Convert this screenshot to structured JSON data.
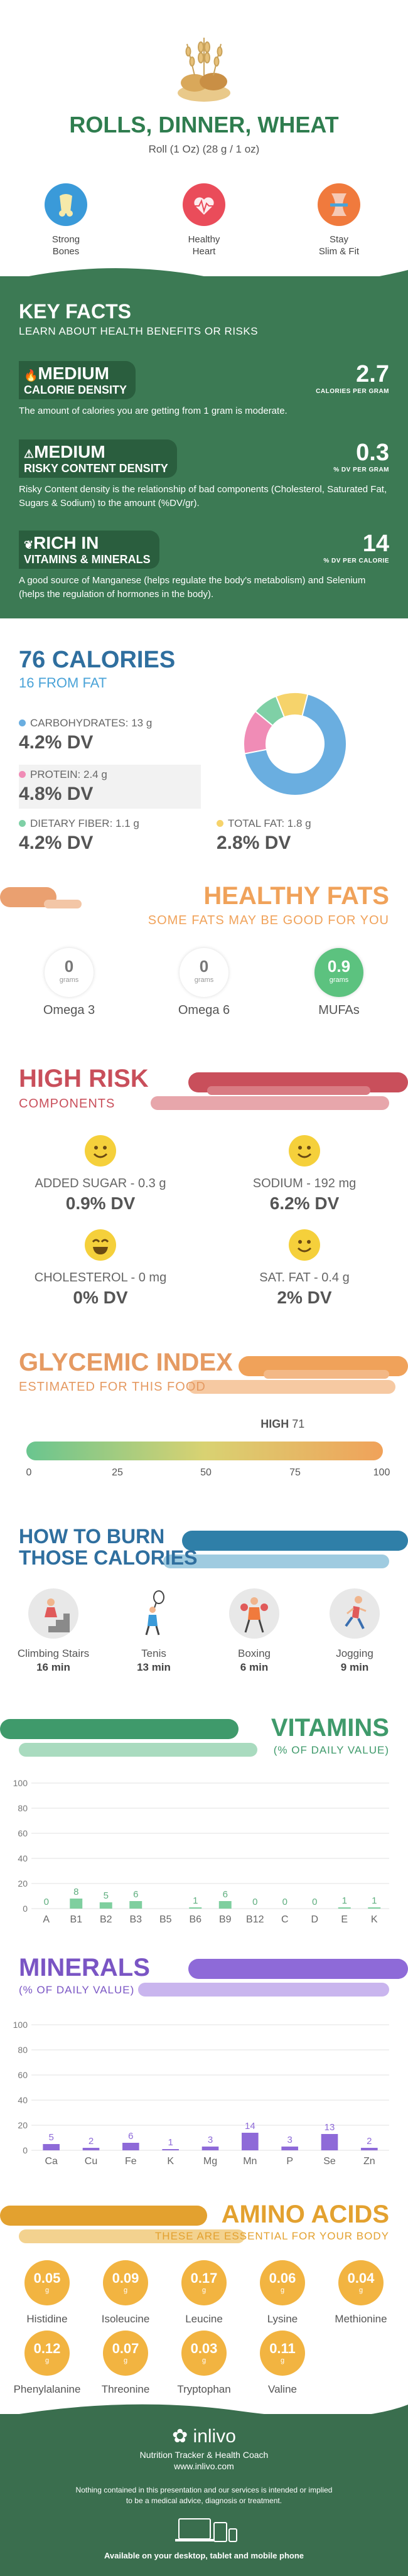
{
  "header": {
    "title": "ROLLS, DINNER, WHEAT",
    "serving": "Roll (1 Oz) (28 g / 1 oz)",
    "benefits": [
      {
        "line1": "Strong",
        "line2": "Bones",
        "icon": "bone-icon",
        "color": "#3a9ad9"
      },
      {
        "line1": "Healthy",
        "line2": "Heart",
        "icon": "heart-icon",
        "color": "#ea4c5a"
      },
      {
        "line1": "Stay",
        "line2": "Slim & Fit",
        "icon": "waist-icon",
        "color": "#f07a3d"
      }
    ]
  },
  "key_facts": {
    "title": "KEY FACTS",
    "subtitle": "LEARN ABOUT HEALTH BENEFITS OR RISKS",
    "items": [
      {
        "level": "MEDIUM",
        "name": "CALORIE DENSITY",
        "value": "2.7",
        "unit": "CALORIES PER GRAM",
        "desc": "The amount of calories you are getting from 1 gram is moderate."
      },
      {
        "level": "MEDIUM",
        "name": "RISKY CONTENT DENSITY",
        "value": "0.3",
        "unit": "% DV PER GRAM",
        "desc": "Risky Content density is the relationship of bad components (Cholesterol, Saturated Fat, Sugars & Sodium) to the amount (%DV/gr)."
      },
      {
        "level": "RICH IN",
        "name": "VITAMINS & MINERALS",
        "value": "14",
        "unit": "% DV PER CALORIE",
        "desc": "A good source of Manganese (helps regulate the body's metabolism) and Selenium (helps the regulation of hormones in the body)."
      }
    ]
  },
  "calories": {
    "title": "76 CALORIES",
    "from_fat": "16 FROM FAT",
    "nutrients": [
      {
        "label": "CARBOHYDRATES: 13 g",
        "dv": "4.2% DV",
        "color": "#6aaee0"
      },
      {
        "label": "PROTEIN: 2.4 g",
        "dv": "4.8% DV",
        "color": "#f08cb6"
      },
      {
        "label": "DIETARY FIBER: 1.1 g",
        "dv": "4.2% DV",
        "color": "#7fd0a6"
      },
      {
        "label": "TOTAL FAT: 1.8 g",
        "dv": "2.8% DV",
        "color": "#f6d36b"
      }
    ],
    "donut": [
      {
        "value": 68,
        "color": "#6aaee0"
      },
      {
        "value": 14,
        "color": "#f08cb6"
      },
      {
        "value": 8,
        "color": "#7fd0a6"
      },
      {
        "value": 10,
        "color": "#f6d36b"
      }
    ]
  },
  "healthy_fats": {
    "title": "HEALTHY FATS",
    "subtitle": "SOME FATS MAY BE GOOD FOR YOU",
    "unit": "grams",
    "items": [
      {
        "name": "Omega 3",
        "value": "0"
      },
      {
        "name": "Omega 6",
        "value": "0"
      },
      {
        "name": "MUFAs",
        "value": "0.9"
      }
    ]
  },
  "high_risk": {
    "title": "HIGH RISK",
    "subtitle": "COMPONENTS",
    "items": [
      {
        "label": "ADDED SUGAR - 0.3 g",
        "dv": "0.9% DV"
      },
      {
        "label": "SODIUM - 192 mg",
        "dv": "6.2% DV"
      },
      {
        "label": "CHOLESTEROL - 0 mg",
        "dv": "0% DV"
      },
      {
        "label": "SAT. FAT - 0.4 g",
        "dv": "2% DV"
      }
    ]
  },
  "glycemic": {
    "title": "GLYCEMIC INDEX",
    "subtitle": "ESTIMATED FOR THIS FOOD",
    "level": "HIGH",
    "value": 71,
    "ticks": [
      "0",
      "25",
      "50",
      "75",
      "100"
    ]
  },
  "burn": {
    "title_line1": "HOW TO BURN",
    "title_line2": "THOSE CALORIES",
    "activities": [
      {
        "name": "Climbing Stairs",
        "time": "16 min"
      },
      {
        "name": "Tenis",
        "time": "13 min"
      },
      {
        "name": "Boxing",
        "time": "6 min"
      },
      {
        "name": "Jogging",
        "time": "9 min"
      }
    ]
  },
  "vitamins": {
    "title": "VITAMINS",
    "subtitle": "(% OF DAILY VALUE)",
    "chart_data": {
      "type": "bar",
      "categories": [
        "A",
        "B1",
        "B2",
        "B3",
        "B5",
        "B6",
        "B9",
        "B12",
        "C",
        "D",
        "E",
        "K"
      ],
      "values": [
        0,
        8,
        5,
        6,
        0,
        1,
        6,
        0,
        0,
        0,
        1,
        1
      ],
      "labels": [
        "0",
        "8",
        "5",
        "6",
        "",
        "1",
        "6",
        "0",
        "0",
        "0",
        "1",
        "1"
      ],
      "yticks": [
        "0",
        "20",
        "40",
        "60",
        "80",
        "100"
      ],
      "ylim": [
        0,
        100
      ],
      "color": "#7fcf9f",
      "label_color": "#5fae7f"
    }
  },
  "minerals": {
    "title": "MINERALS",
    "subtitle": "(% OF DAILY VALUE)",
    "chart_data": {
      "type": "bar",
      "categories": [
        "Ca",
        "Cu",
        "Fe",
        "K",
        "Mg",
        "Mn",
        "P",
        "Se",
        "Zn"
      ],
      "values": [
        5,
        2,
        6,
        1,
        3,
        14,
        3,
        13,
        2
      ],
      "labels": [
        "5",
        "2",
        "6",
        "1",
        "3",
        "14",
        "3",
        "13",
        "2"
      ],
      "yticks": [
        "0",
        "20",
        "40",
        "60",
        "80",
        "100"
      ],
      "ylim": [
        0,
        100
      ],
      "color": "#8e6ad8",
      "label_color": "#8e6ad8"
    }
  },
  "amino_acids": {
    "title": "AMINO ACIDS",
    "subtitle": "THESE ARE ESSENTIAL FOR YOUR BODY",
    "unit": "g",
    "items": [
      {
        "name": "Histidine",
        "value": "0.05"
      },
      {
        "name": "Isoleucine",
        "value": "0.09"
      },
      {
        "name": "Leucine",
        "value": "0.17"
      },
      {
        "name": "Lysine",
        "value": "0.06"
      },
      {
        "name": "Methionine",
        "value": "0.04"
      },
      {
        "name": "Phenylalanine",
        "value": "0.12"
      },
      {
        "name": "Threonine",
        "value": "0.07"
      },
      {
        "name": "Tryptophan",
        "value": "0.03"
      },
      {
        "name": "Valine",
        "value": "0.11"
      }
    ]
  },
  "footer": {
    "brand": "inlivo",
    "tagline": "Nutrition Tracker & Health Coach",
    "url": "www.inlivo.com",
    "disclaimer_line1": "Nothing contained in this presentation and our services is intended or implied",
    "disclaimer_line2": "to be a medical advice, diagnosis or treatment.",
    "available": "Available on your desktop, tablet and mobile phone"
  }
}
